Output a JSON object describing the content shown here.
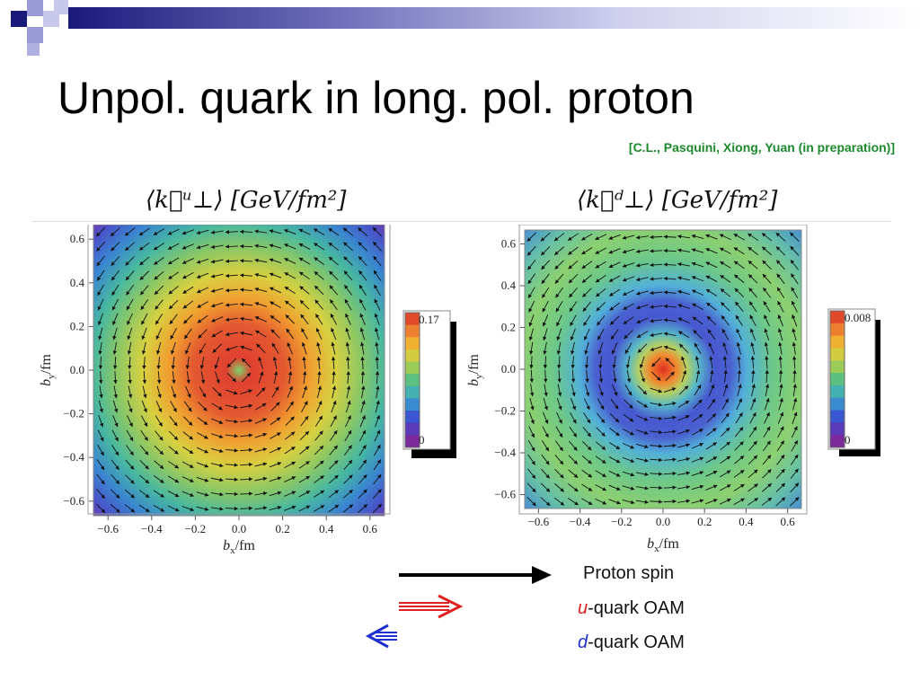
{
  "slide": {
    "title": "Unpol. quark in long. pol. proton",
    "reference": "[C.L., Pasquini, Xiong, Yuan (in preparation)]"
  },
  "plots": [
    {
      "heading": "⟨k⃗ᵘ⊥⟩ [GeV/fm²]",
      "xlabel_main": "b",
      "xlabel_sub": "x",
      "xlabel_unit": "/fm",
      "ylabel_main": "b",
      "ylabel_sub": "y",
      "ylabel_unit": "/fm",
      "xticks": [
        "−0.6",
        "−0.4",
        "−0.2",
        "0.0",
        "0.2",
        "0.4",
        "0.6"
      ],
      "yticks": [
        "0.6",
        "0.4",
        "0.2",
        "0.0",
        "−0.2",
        "−0.4",
        "−0.6"
      ],
      "colorbar_max": "0.17",
      "colorbar_min": "0"
    },
    {
      "heading": "⟨k⃗ᵈ⊥⟩ [GeV/fm²]",
      "xlabel_main": "b",
      "xlabel_sub": "x",
      "xlabel_unit": "/fm",
      "ylabel_main": "b",
      "ylabel_sub": "y",
      "ylabel_unit": "/fm",
      "xticks": [
        "−0.6",
        "−0.4",
        "−0.2",
        "0.0",
        "0.2",
        "0.4",
        "0.6"
      ],
      "yticks": [
        "0.6",
        "0.4",
        "0.2",
        "0.0",
        "−0.2",
        "−0.4",
        "−0.6"
      ],
      "colorbar_max": "0.008",
      "colorbar_min": "0"
    }
  ],
  "legend": {
    "proton": "Proton spin",
    "u_letter": "u",
    "u_rest": "-quark OAM",
    "d_letter": "d",
    "d_rest": "-quark OAM"
  },
  "colors": {
    "navy": "#1a1a7a",
    "reference": "#1a8a2a",
    "u_arrow": "#e02020",
    "d_arrow": "#2030d0"
  }
}
